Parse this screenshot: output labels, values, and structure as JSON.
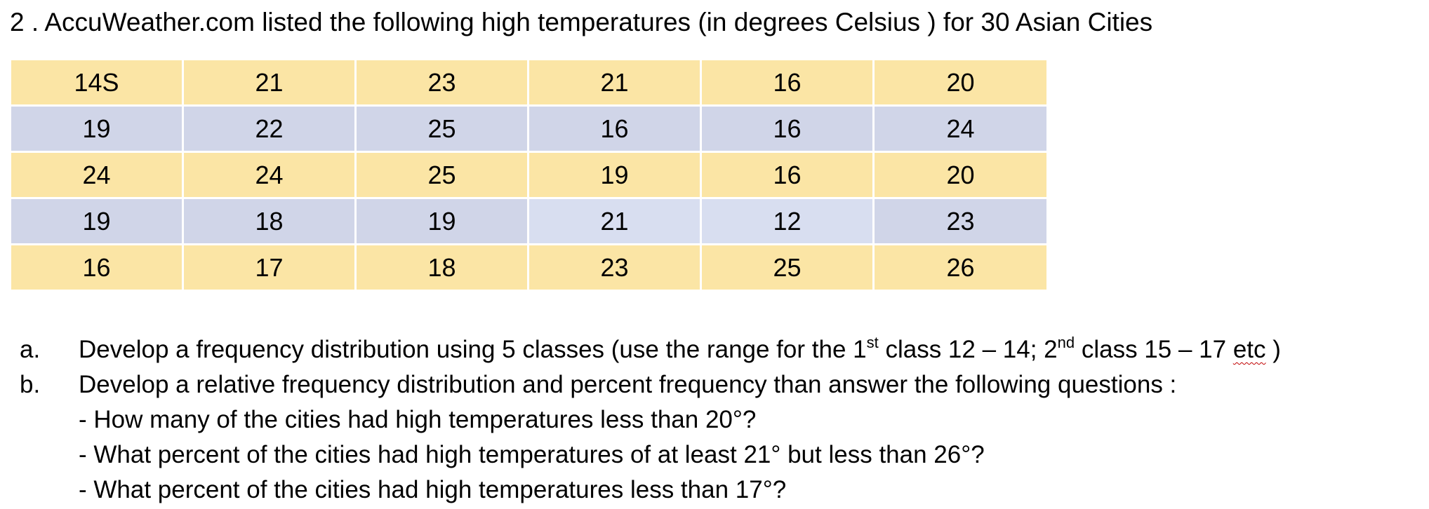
{
  "heading": "2 . AccuWeather.com listed the following high temperatures (in degrees Celsius ) for 30 Asian Cities",
  "table": {
    "rows": [
      [
        "14S",
        "21",
        "23",
        "21",
        "16",
        "20"
      ],
      [
        "19",
        "22",
        "25",
        "16",
        "16",
        "24"
      ],
      [
        "24",
        "24",
        "25",
        "19",
        "16",
        "20"
      ],
      [
        "19",
        "18",
        "19",
        "21",
        "12",
        "23"
      ],
      [
        "16",
        "17",
        "18",
        "23",
        "25",
        "26"
      ]
    ],
    "row_colors": [
      "#fbe5a5",
      "#d0d5e8",
      "#fbe5a5",
      "#d0d5e8",
      "#fbe5a5"
    ]
  },
  "questions": {
    "a": {
      "letter": "a.",
      "text_1": "Develop a frequency distribution using  5 classes (use the range for the 1",
      "sup_1": "st",
      "text_2": " class 12 – 14;  2",
      "sup_2": "nd",
      "text_3": " class  15 – 17 ",
      "etc": "etc",
      "text_4": " )"
    },
    "b": {
      "letter": "b.",
      "text": "Develop a relative frequency distribution and percent frequency than answer the following questions :",
      "items": [
        "- How many of the cities had high temperatures less than 20°?",
        "- What percent of the cities had high temperatures of at least 21° but less than 26°?",
        "- What percent of the cities had high temperatures less than 17°?"
      ]
    }
  }
}
